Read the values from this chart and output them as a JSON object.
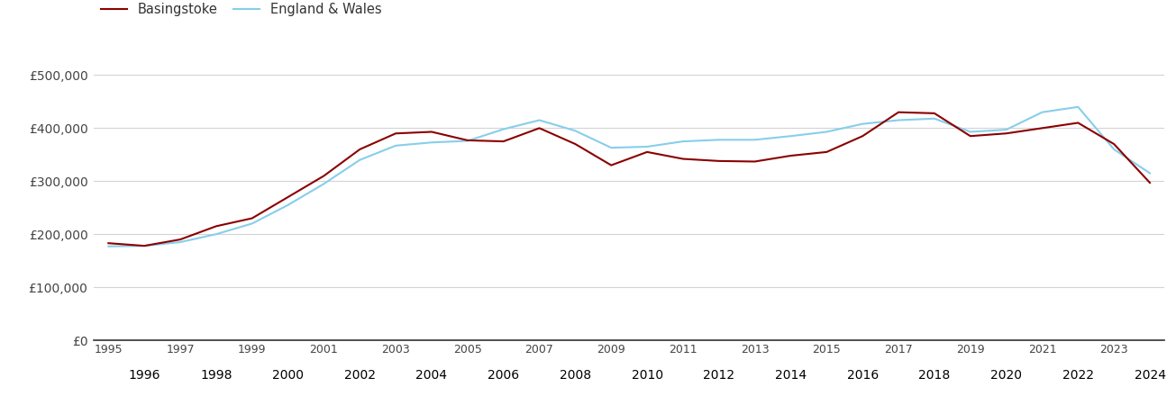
{
  "years": [
    1995,
    1996,
    1997,
    1998,
    1999,
    2000,
    2001,
    2002,
    2003,
    2004,
    2005,
    2006,
    2007,
    2008,
    2009,
    2010,
    2011,
    2012,
    2013,
    2014,
    2015,
    2016,
    2017,
    2018,
    2019,
    2020,
    2021,
    2022,
    2023,
    2024
  ],
  "basingstoke": [
    183000,
    178000,
    190000,
    215000,
    230000,
    270000,
    310000,
    360000,
    390000,
    393000,
    377000,
    375000,
    400000,
    370000,
    330000,
    355000,
    342000,
    338000,
    337000,
    348000,
    355000,
    385000,
    430000,
    428000,
    385000,
    390000,
    400000,
    410000,
    370000,
    297000
  ],
  "england_wales": [
    177000,
    178000,
    185000,
    200000,
    220000,
    255000,
    295000,
    340000,
    367000,
    373000,
    376000,
    398000,
    415000,
    395000,
    363000,
    365000,
    375000,
    378000,
    378000,
    385000,
    393000,
    408000,
    415000,
    418000,
    393000,
    397000,
    430000,
    440000,
    360000,
    315000
  ],
  "basingstoke_color": "#8B0000",
  "england_wales_color": "#87CEEB",
  "background_color": "#ffffff",
  "grid_color": "#d3d3d3",
  "ylim": [
    0,
    550000
  ],
  "yticks": [
    0,
    100000,
    200000,
    300000,
    400000,
    500000
  ],
  "ytick_labels": [
    "£0",
    "£100,000",
    "£200,000",
    "£300,000",
    "£400,000",
    "£500,000"
  ],
  "legend_basingstoke": "Basingstoke",
  "legend_england_wales": "England & Wales",
  "line_width": 1.5,
  "xlim_left": 1994.6,
  "xlim_right": 2024.4
}
